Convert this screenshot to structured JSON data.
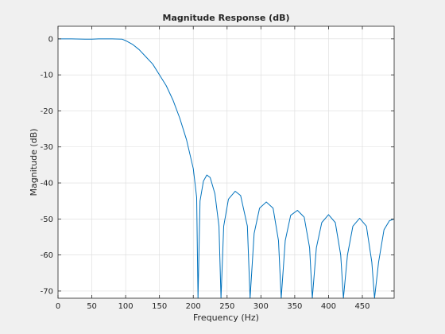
{
  "chart_data": {
    "type": "line",
    "title": "Magnitude Response (dB)",
    "xlabel": "Frequency (Hz)",
    "ylabel": "Magnitude (dB)",
    "xlim": [
      0,
      497
    ],
    "ylim": [
      -72,
      3.5
    ],
    "grid": true,
    "x_ticks": [
      0,
      50,
      100,
      150,
      200,
      250,
      300,
      350,
      400,
      450
    ],
    "y_ticks": [
      0,
      -10,
      -20,
      -30,
      -40,
      -50,
      -60,
      -70
    ],
    "colors": {
      "line": "#0072bd",
      "axes_bg": "#ffffff",
      "figure_bg": "#f0f0f0",
      "grid": "#dcdcdc"
    },
    "series": [
      {
        "points": [
          [
            0,
            0
          ],
          [
            20,
            0
          ],
          [
            40,
            -0.1
          ],
          [
            50,
            -0.1
          ],
          [
            60,
            0
          ],
          [
            80,
            0
          ],
          [
            95,
            -0.1
          ],
          [
            100,
            -0.5
          ],
          [
            110,
            -1.5
          ],
          [
            120,
            -3
          ],
          [
            130,
            -5
          ],
          [
            140,
            -7
          ],
          [
            150,
            -10
          ],
          [
            160,
            -13
          ],
          [
            170,
            -17
          ],
          [
            180,
            -22
          ],
          [
            190,
            -28
          ],
          [
            200,
            -36
          ],
          [
            205,
            -44
          ],
          [
            207,
            -72
          ],
          [
            210,
            -45
          ],
          [
            215,
            -39.5
          ],
          [
            220,
            -37.8
          ],
          [
            225,
            -38.5
          ],
          [
            232,
            -43
          ],
          [
            238,
            -52
          ],
          [
            241,
            -72
          ],
          [
            245,
            -52
          ],
          [
            252,
            -44.5
          ],
          [
            262,
            -42.3
          ],
          [
            270,
            -43.5
          ],
          [
            280,
            -52
          ],
          [
            284,
            -72
          ],
          [
            290,
            -54
          ],
          [
            298,
            -47
          ],
          [
            308,
            -45.3
          ],
          [
            318,
            -47
          ],
          [
            326,
            -56
          ],
          [
            330,
            -72
          ],
          [
            336,
            -56
          ],
          [
            344,
            -49
          ],
          [
            354,
            -47.6
          ],
          [
            364,
            -49.5
          ],
          [
            372,
            -58
          ],
          [
            376,
            -72
          ],
          [
            382,
            -58
          ],
          [
            390,
            -51
          ],
          [
            400,
            -48.8
          ],
          [
            410,
            -51
          ],
          [
            418,
            -60
          ],
          [
            422,
            -72
          ],
          [
            428,
            -60
          ],
          [
            436,
            -52
          ],
          [
            446,
            -49.8
          ],
          [
            456,
            -52
          ],
          [
            464,
            -62
          ],
          [
            468,
            -72
          ],
          [
            474,
            -62
          ],
          [
            482,
            -53
          ],
          [
            490,
            -50.5
          ],
          [
            497,
            -50
          ]
        ]
      }
    ]
  }
}
